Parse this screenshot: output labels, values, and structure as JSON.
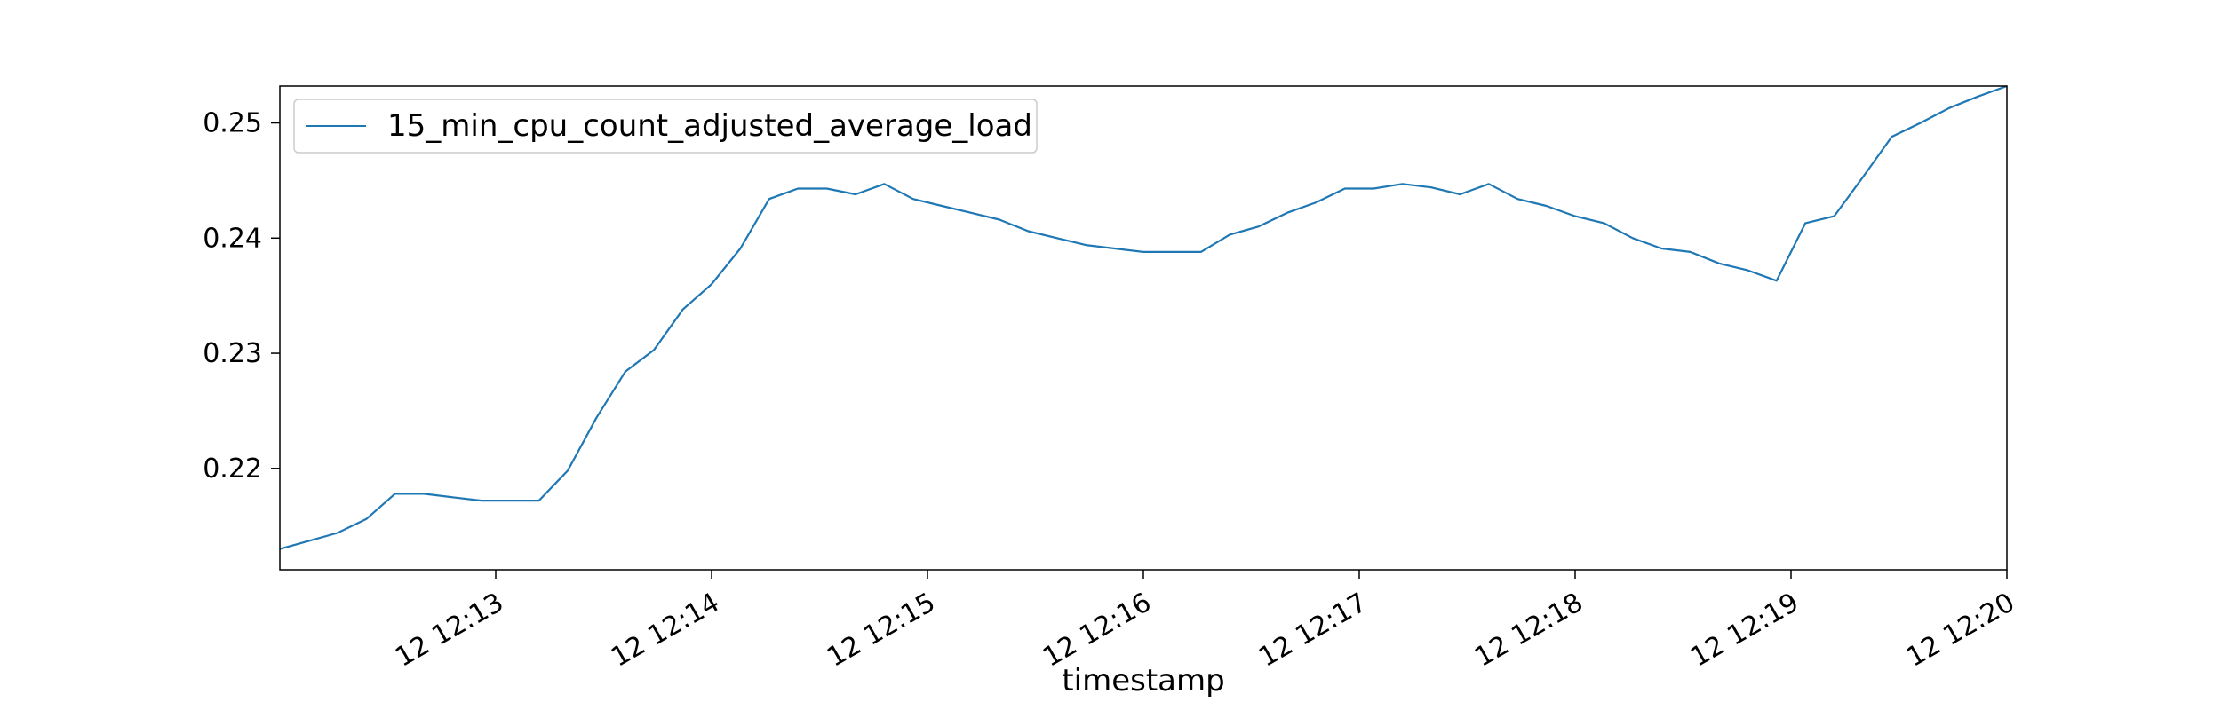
{
  "chart_data": {
    "type": "line",
    "title": "",
    "xlabel": "timestamp",
    "ylabel": "",
    "legend_position": "top-left",
    "grid": false,
    "xlim": [
      "12:12:00",
      "12:20:00"
    ],
    "ylim": [
      0.2112,
      0.2532
    ],
    "x_ticks": [
      {
        "time": "12:13",
        "label": "12 12:13"
      },
      {
        "time": "12:14",
        "label": "12 12:14"
      },
      {
        "time": "12:15",
        "label": "12 12:15"
      },
      {
        "time": "12:16",
        "label": "12 12:16"
      },
      {
        "time": "12:17",
        "label": "12 12:17"
      },
      {
        "time": "12:18",
        "label": "12 12:18"
      },
      {
        "time": "12:19",
        "label": "12 12:19"
      },
      {
        "time": "12:20",
        "label": "12 12:20"
      }
    ],
    "y_ticks": [
      0.22,
      0.23,
      0.24,
      0.25
    ],
    "y_tick_labels": [
      "0.22",
      "0.23",
      "0.24",
      "0.25"
    ],
    "series": [
      {
        "name": "15_min_cpu_count_adjusted_average_load",
        "color": "#1f77b4",
        "x": [
          "12:12:00",
          "12:12:08",
          "12:12:16",
          "12:12:24",
          "12:12:32",
          "12:12:40",
          "12:12:48",
          "12:12:56",
          "12:13:04",
          "12:13:12",
          "12:13:20",
          "12:13:28",
          "12:13:36",
          "12:13:44",
          "12:13:52",
          "12:14:00",
          "12:14:08",
          "12:14:16",
          "12:14:24",
          "12:14:32",
          "12:14:40",
          "12:14:48",
          "12:14:56",
          "12:15:04",
          "12:15:12",
          "12:15:20",
          "12:15:28",
          "12:15:36",
          "12:15:44",
          "12:15:52",
          "12:16:00",
          "12:16:08",
          "12:16:16",
          "12:16:24",
          "12:16:32",
          "12:16:40",
          "12:16:48",
          "12:16:56",
          "12:17:04",
          "12:17:12",
          "12:17:20",
          "12:17:28",
          "12:17:36",
          "12:17:44",
          "12:17:52",
          "12:18:00",
          "12:18:08",
          "12:18:16",
          "12:18:24",
          "12:18:32",
          "12:18:40",
          "12:18:48",
          "12:18:56",
          "12:19:04",
          "12:19:12",
          "12:19:20",
          "12:19:28",
          "12:19:36",
          "12:19:44",
          "12:19:52",
          "12:20:00"
        ],
        "y": [
          0.213,
          0.2137,
          0.2144,
          0.2156,
          0.2178,
          0.2178,
          0.2175,
          0.2172,
          0.2172,
          0.2172,
          0.2198,
          0.2244,
          0.2284,
          0.2303,
          0.2338,
          0.236,
          0.2391,
          0.2434,
          0.2443,
          0.2443,
          0.2438,
          0.2447,
          0.2434,
          0.2428,
          0.2422,
          0.2416,
          0.2406,
          0.24,
          0.2394,
          0.2391,
          0.2388,
          0.2388,
          0.2388,
          0.2403,
          0.241,
          0.2422,
          0.2431,
          0.2443,
          0.2443,
          0.2447,
          0.2444,
          0.2438,
          0.2447,
          0.2434,
          0.2428,
          0.2419,
          0.2413,
          0.24,
          0.2391,
          0.2388,
          0.2378,
          0.2372,
          0.2363,
          0.2413,
          0.2419,
          0.2453,
          0.2488,
          0.25,
          0.2513,
          0.2523,
          0.2532
        ]
      }
    ]
  }
}
